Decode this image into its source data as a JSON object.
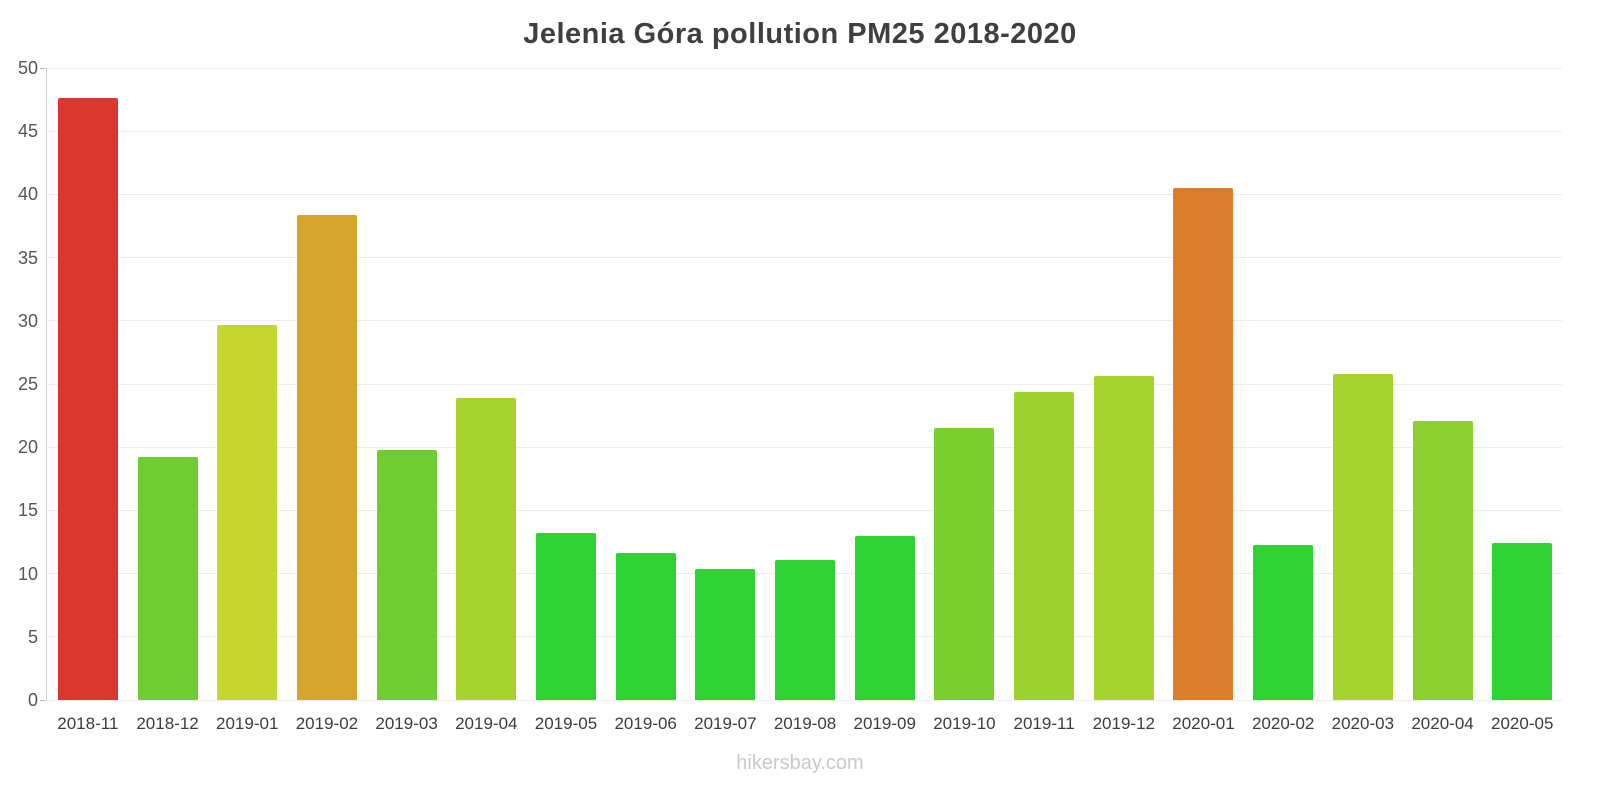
{
  "page": {
    "title": "Jelenia Góra pollution PM25 2018-2020",
    "footer": "hikersbay.com"
  },
  "chart_data": {
    "type": "bar",
    "title": "Jelenia Góra pollution PM25 2018-2020",
    "xlabel": "",
    "ylabel": "",
    "ylim": [
      0,
      50
    ],
    "yticks": [
      0,
      5,
      10,
      15,
      20,
      25,
      30,
      35,
      40,
      45,
      50
    ],
    "grid": "horizontal",
    "legend": "none",
    "categories": [
      "2018-11",
      "2018-12",
      "2019-01",
      "2019-02",
      "2019-03",
      "2019-04",
      "2019-05",
      "2019-06",
      "2019-07",
      "2019-08",
      "2019-09",
      "2019-10",
      "2019-11",
      "2019-12",
      "2020-01",
      "2020-02",
      "2020-03",
      "2020-04",
      "2020-05"
    ],
    "values": [
      47.6,
      19.2,
      29.7,
      38.4,
      19.8,
      23.9,
      13.2,
      11.6,
      10.4,
      11.1,
      13.0,
      21.5,
      24.4,
      25.6,
      40.5,
      12.3,
      25.8,
      22.1,
      12.4
    ],
    "bar_colors": [
      "#db372e",
      "#70cd31",
      "#c5d630",
      "#d5a62b",
      "#70cd31",
      "#a6d32e",
      "#2ed232",
      "#2ed232",
      "#2ed232",
      "#2ed232",
      "#2ed232",
      "#7acf30",
      "#9dd32e",
      "#a6d32e",
      "#db7d2a",
      "#2ed232",
      "#a6d32e",
      "#8dd030",
      "#2ed232"
    ]
  }
}
